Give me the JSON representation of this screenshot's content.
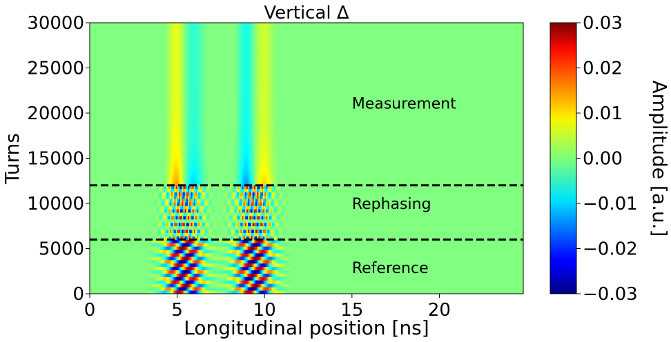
{
  "chart_data": {
    "type": "heatmap",
    "title": "Vertical Δ",
    "xlabel": "Longitudinal position [ns]",
    "ylabel": "Turns",
    "xlim": [
      0,
      24.8
    ],
    "ylim": [
      0,
      30000
    ],
    "x_ticks": [
      0,
      5,
      10,
      15,
      20
    ],
    "x_tick_labels": [
      "0",
      "5",
      "10",
      "15",
      "20"
    ],
    "y_ticks": [
      0,
      5000,
      10000,
      15000,
      20000,
      25000,
      30000
    ],
    "y_tick_labels": [
      "0",
      "5000",
      "10000",
      "15000",
      "20000",
      "25000",
      "30000"
    ],
    "colormap": "jet",
    "colorbar": {
      "label": "Amplitude [a.u.]",
      "range": [
        -0.03,
        0.03
      ],
      "ticks": [
        0.03,
        0.02,
        0.01,
        0.0,
        -0.01,
        -0.02,
        -0.03
      ],
      "tick_labels": [
        "0.03",
        "0.02",
        "0.01",
        "0.00",
        "−0.01",
        "−0.02",
        "−0.03"
      ]
    },
    "bunch_centers_ns": [
      5.4,
      9.4
    ],
    "phase_boundaries_turns": [
      6000,
      12000
    ],
    "regions": [
      {
        "label": "Reference",
        "x": 15,
        "y": 2300
      },
      {
        "label": "Rephasing",
        "x": 15,
        "y": 9400
      },
      {
        "label": "Measurement",
        "x": 15,
        "y": 20500
      }
    ],
    "grid": false
  }
}
